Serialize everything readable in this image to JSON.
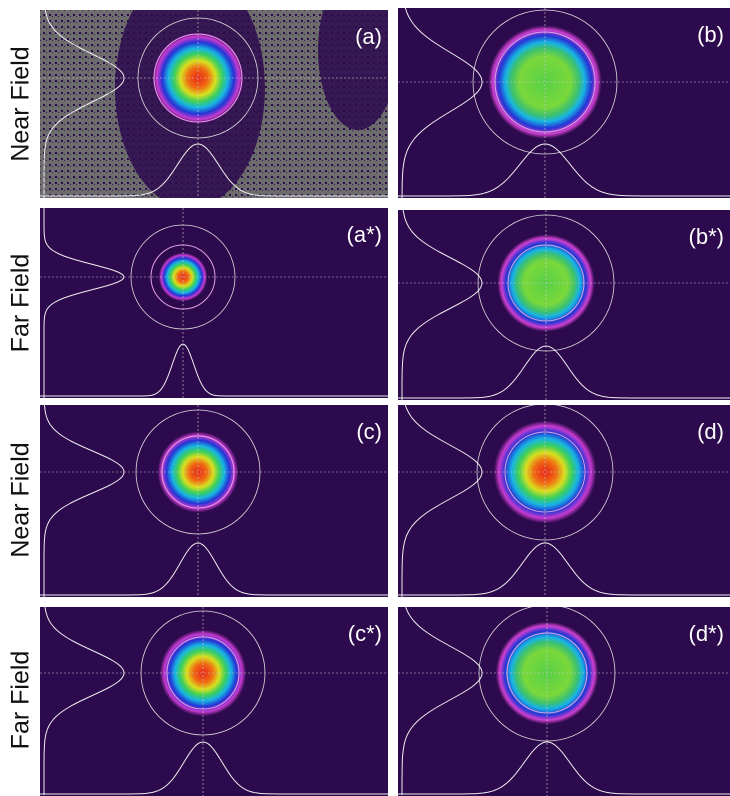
{
  "rows": [
    {
      "label": "Near Field"
    },
    {
      "label": "Far Field"
    },
    {
      "label": "Near Field"
    },
    {
      "label": "Far Field"
    }
  ],
  "panels": [
    {
      "label": "(a)"
    },
    {
      "label": "(b)"
    },
    {
      "label": "(a*)"
    },
    {
      "label": "(b*)"
    },
    {
      "label": "(c)"
    },
    {
      "label": "(d)"
    },
    {
      "label": "(c*)"
    },
    {
      "label": "(d*)"
    }
  ]
}
